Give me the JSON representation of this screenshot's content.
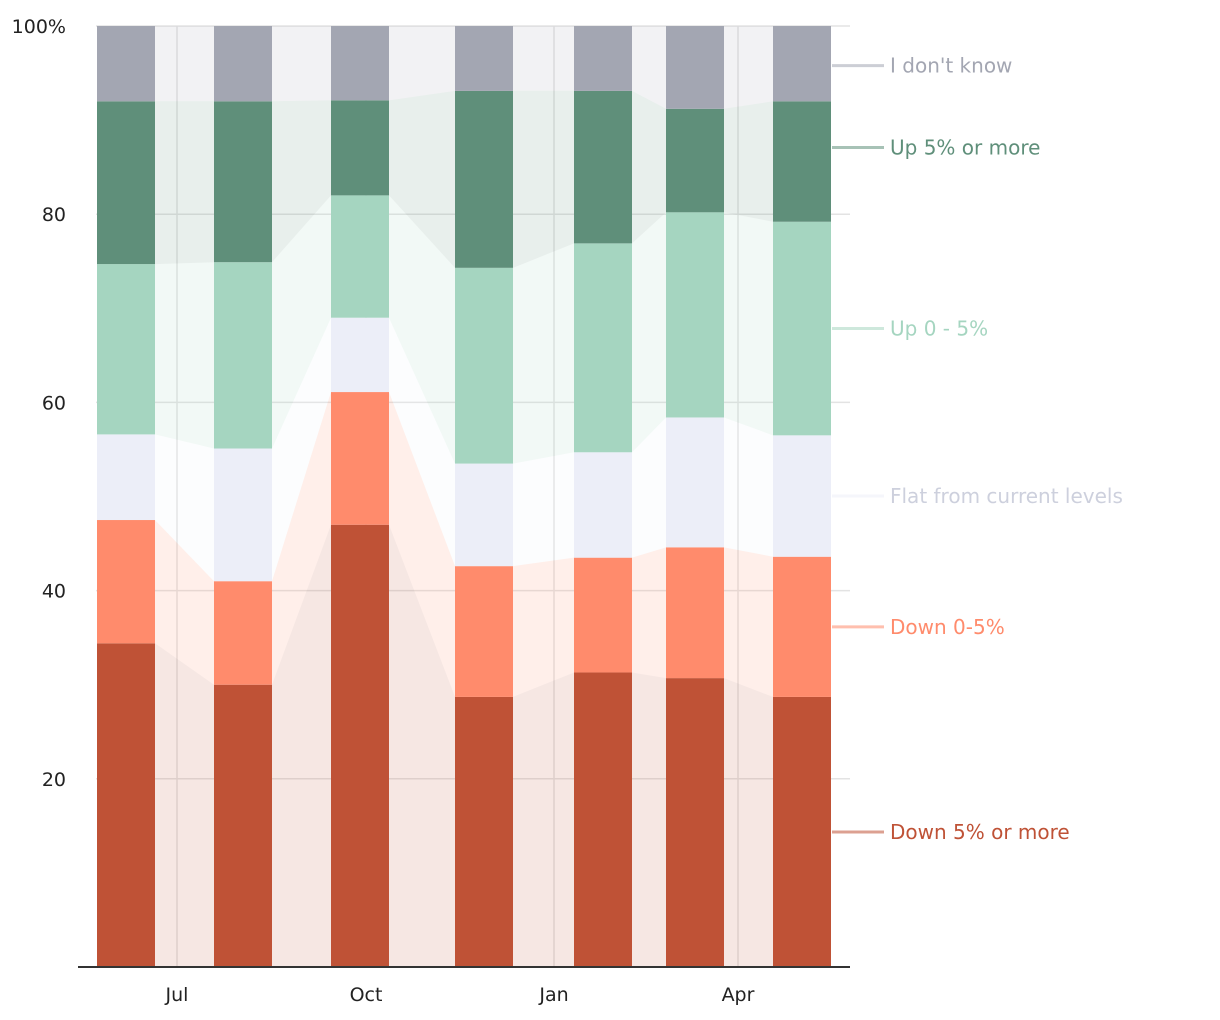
{
  "chart_data": {
    "type": "bar",
    "stacked": true,
    "normalized_percent": true,
    "x_tick_labels": [
      "Jul",
      "Oct",
      "Jan",
      "Apr"
    ],
    "bar_count": 7,
    "ylim": [
      0,
      100
    ],
    "y_ticks": [
      {
        "value": 20,
        "label": "20"
      },
      {
        "value": 40,
        "label": "40"
      },
      {
        "value": 60,
        "label": "60"
      },
      {
        "value": 80,
        "label": "80"
      },
      {
        "value": 100,
        "label": "100%"
      }
    ],
    "grid": true,
    "legend_position": "right",
    "series": [
      {
        "name": "Down 5% or more",
        "color": "#bf5236",
        "values": [
          34.4,
          30.0,
          47.0,
          28.7,
          31.3,
          30.7,
          28.7
        ]
      },
      {
        "name": "Down 0-5%",
        "color": "#ff8b6c",
        "values": [
          13.1,
          11.0,
          14.1,
          13.9,
          12.2,
          13.9,
          14.9
        ]
      },
      {
        "name": "Flat from current levels",
        "color": "#eceef8",
        "values": [
          9.1,
          14.1,
          7.9,
          10.9,
          11.2,
          13.8,
          12.9
        ]
      },
      {
        "name": "Up 0 - 5%",
        "color": "#a5d5c0",
        "values": [
          18.1,
          19.8,
          13.0,
          20.8,
          22.2,
          21.8,
          22.7
        ]
      },
      {
        "name": "Up 5% or more",
        "color": "#5f8f7a",
        "values": [
          17.3,
          17.1,
          10.1,
          18.8,
          16.2,
          11.0,
          12.8
        ]
      },
      {
        "name": "I don't know",
        "color": "#a3a6b2",
        "values": [
          8.0,
          8.0,
          7.9,
          6.9,
          6.9,
          8.8,
          8.0
        ]
      }
    ],
    "legend_label_colors": [
      "#bf5236",
      "#ff8b6c",
      "#cdd0dd",
      "#a5d5c0",
      "#5f8f7a",
      "#a3a6b2"
    ]
  }
}
